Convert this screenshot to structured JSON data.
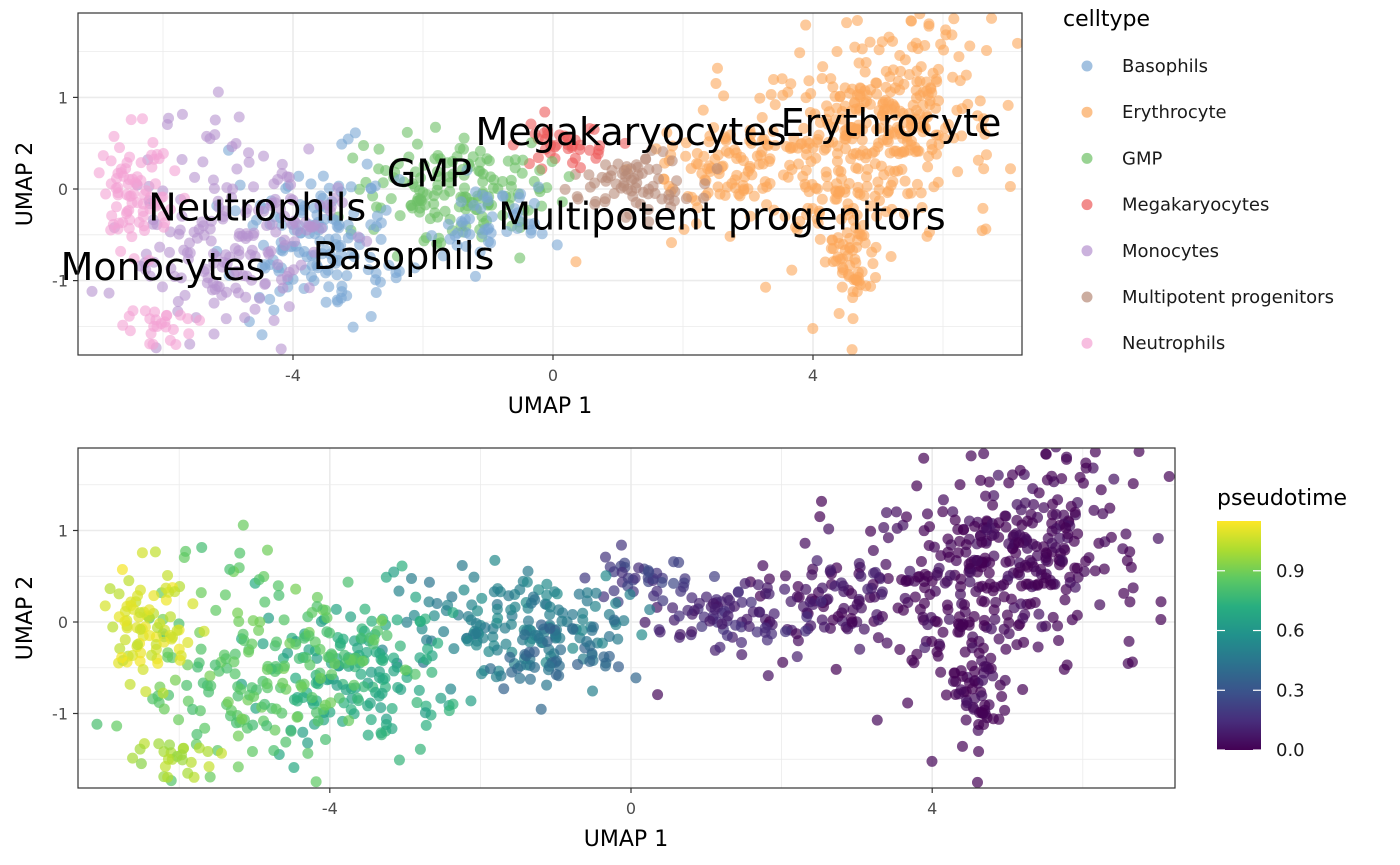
{
  "chart_data": [
    {
      "type": "scatter",
      "xlabel": "UMAP 1",
      "ylabel": "UMAP 2",
      "xlim": [
        -7.2,
        7.2
      ],
      "ylim": [
        -1.8,
        1.93
      ],
      "x_ticks": [
        -4,
        0,
        4
      ],
      "y_ticks": [
        -1,
        0,
        1
      ],
      "x_tick_labels": [
        "-4",
        "0",
        "4"
      ],
      "y_tick_labels": [
        "-1",
        "0",
        "1"
      ],
      "grid": true,
      "legend": {
        "title": "celltype",
        "position": "right",
        "entries": [
          {
            "name": "Basophils",
            "color": "#7aa6d3"
          },
          {
            "name": "Erythrocyte",
            "color": "#fba65a"
          },
          {
            "name": "GMP",
            "color": "#6dc065"
          },
          {
            "name": "Megakaryocytes",
            "color": "#ec5a5a"
          },
          {
            "name": "Monocytes",
            "color": "#b592cf"
          },
          {
            "name": "Multipotent progenitors",
            "color": "#b78a78"
          },
          {
            "name": "Neutrophils",
            "color": "#f3a2d3"
          }
        ]
      },
      "annotations": [
        {
          "text": "Megakaryocytes",
          "x": 1.2,
          "y": 0.62
        },
        {
          "text": "Erythrocyte",
          "x": 5.2,
          "y": 0.72
        },
        {
          "text": "GMP",
          "x": -1.9,
          "y": 0.17
        },
        {
          "text": "Multipotent progenitors",
          "x": 2.6,
          "y": -0.3
        },
        {
          "text": "Neutrophils",
          "x": -4.55,
          "y": -0.2
        },
        {
          "text": "Basophils",
          "x": -2.3,
          "y": -0.73
        },
        {
          "text": "Monocytes",
          "x": -6.0,
          "y": -0.85
        }
      ]
    },
    {
      "type": "scatter",
      "xlabel": "UMAP 1",
      "ylabel": "UMAP 2",
      "xlim": [
        -7.2,
        7.2
      ],
      "ylim": [
        -1.8,
        1.93
      ],
      "x_ticks": [
        -4,
        0,
        4
      ],
      "y_ticks": [
        -1,
        0,
        1
      ],
      "x_tick_labels": [
        "-4",
        "0",
        "4"
      ],
      "y_tick_labels": [
        "-1",
        "0",
        "1"
      ],
      "grid": true,
      "colorbar": {
        "title": "pseudotime",
        "position": "right",
        "range": [
          0,
          1.15
        ],
        "ticks": [
          0.0,
          0.3,
          0.6,
          0.9
        ],
        "tick_labels": [
          "0.0",
          "0.3",
          "0.6",
          "0.9"
        ],
        "colormap": "viridis"
      }
    }
  ]
}
